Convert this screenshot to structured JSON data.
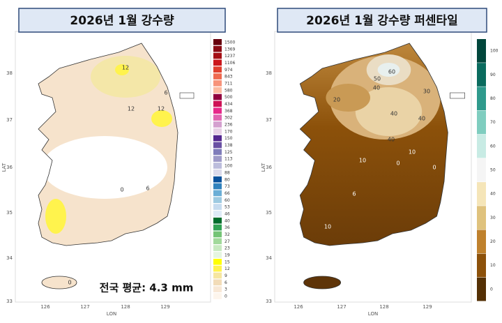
{
  "panels": [
    {
      "title": "2026년 1월 강수량",
      "y_axis_label": "LAT",
      "x_axis_label": "LON",
      "lat_ticks": [
        "38",
        "37",
        "36",
        "35",
        "34",
        "33"
      ],
      "lon_ticks": [
        "126",
        "127",
        "128",
        "129"
      ],
      "legend": [
        {
          "label": "1500",
          "color": "#67000d"
        },
        {
          "label": "1369",
          "color": "#8b0a14"
        },
        {
          "label": "1237",
          "color": "#a50f15"
        },
        {
          "label": "1106",
          "color": "#cb181d"
        },
        {
          "label": "974",
          "color": "#e0402f"
        },
        {
          "label": "843",
          "color": "#ef6a50"
        },
        {
          "label": "711",
          "color": "#f7937a"
        },
        {
          "label": "580",
          "color": "#fcbba1"
        },
        {
          "label": "500",
          "color": "#91003f"
        },
        {
          "label": "434",
          "color": "#ce1256"
        },
        {
          "label": "368",
          "color": "#e7298a"
        },
        {
          "label": "302",
          "color": "#df65b0"
        },
        {
          "label": "236",
          "color": "#d4a0cf"
        },
        {
          "label": "170",
          "color": "#e7d0e6"
        },
        {
          "label": "150",
          "color": "#54278f"
        },
        {
          "label": "138",
          "color": "#6a51a3"
        },
        {
          "label": "125",
          "color": "#807dba"
        },
        {
          "label": "113",
          "color": "#9e9ac8"
        },
        {
          "label": "100",
          "color": "#bcbddc"
        },
        {
          "label": "88",
          "color": "#dadaeb"
        },
        {
          "label": "80",
          "color": "#08519c"
        },
        {
          "label": "73",
          "color": "#3182bd"
        },
        {
          "label": "66",
          "color": "#6baed6"
        },
        {
          "label": "60",
          "color": "#9ecae1"
        },
        {
          "label": "53",
          "color": "#c6dbef"
        },
        {
          "label": "46",
          "color": "#deebf7"
        },
        {
          "label": "40",
          "color": "#006d2c"
        },
        {
          "label": "36",
          "color": "#31a354"
        },
        {
          "label": "32",
          "color": "#74c476"
        },
        {
          "label": "27",
          "color": "#a1d99b"
        },
        {
          "label": "23",
          "color": "#c7e9c0"
        },
        {
          "label": "19",
          "color": "#e5f5e0"
        },
        {
          "label": "15",
          "color": "#ffff00"
        },
        {
          "label": "12",
          "color": "#fff34d"
        },
        {
          "label": "9",
          "color": "#f6e6a0"
        },
        {
          "label": "6",
          "color": "#f2dcb8"
        },
        {
          "label": "3",
          "color": "#f8e8d6"
        },
        {
          "label": "0",
          "color": "#fdf5ec"
        }
      ],
      "contour_labels": [
        "12",
        "12",
        "12",
        "6",
        "0",
        "6",
        "0"
      ],
      "annotation": "전국 평균: 4.3 mm"
    },
    {
      "title": "2026년 1월 강수량 퍼센타일",
      "y_axis_label": "LAT",
      "x_axis_label": "LON",
      "lat_ticks": [
        "38",
        "37",
        "36",
        "35",
        "34",
        "33"
      ],
      "lon_ticks": [
        "126",
        "127",
        "128",
        "129"
      ],
      "legend": [
        {
          "label": "100",
          "color": "#01463b"
        },
        {
          "label": "90",
          "color": "#0a6b5e"
        },
        {
          "label": "80",
          "color": "#2f9a8c"
        },
        {
          "label": "70",
          "color": "#7fcdbf"
        },
        {
          "label": "60",
          "color": "#c8ebe4"
        },
        {
          "label": "50",
          "color": "#f5f5f5"
        },
        {
          "label": "40",
          "color": "#f5e5b8"
        },
        {
          "label": "30",
          "color": "#dfc27d"
        },
        {
          "label": "20",
          "color": "#bf812d"
        },
        {
          "label": "10",
          "color": "#8c510a"
        },
        {
          "label": "0",
          "color": "#543005"
        }
      ],
      "contour_labels": [
        "60",
        "50",
        "40",
        "40",
        "40",
        "40",
        "30",
        "20",
        "10",
        "10",
        "0",
        "0",
        "6",
        "10"
      ]
    }
  ]
}
